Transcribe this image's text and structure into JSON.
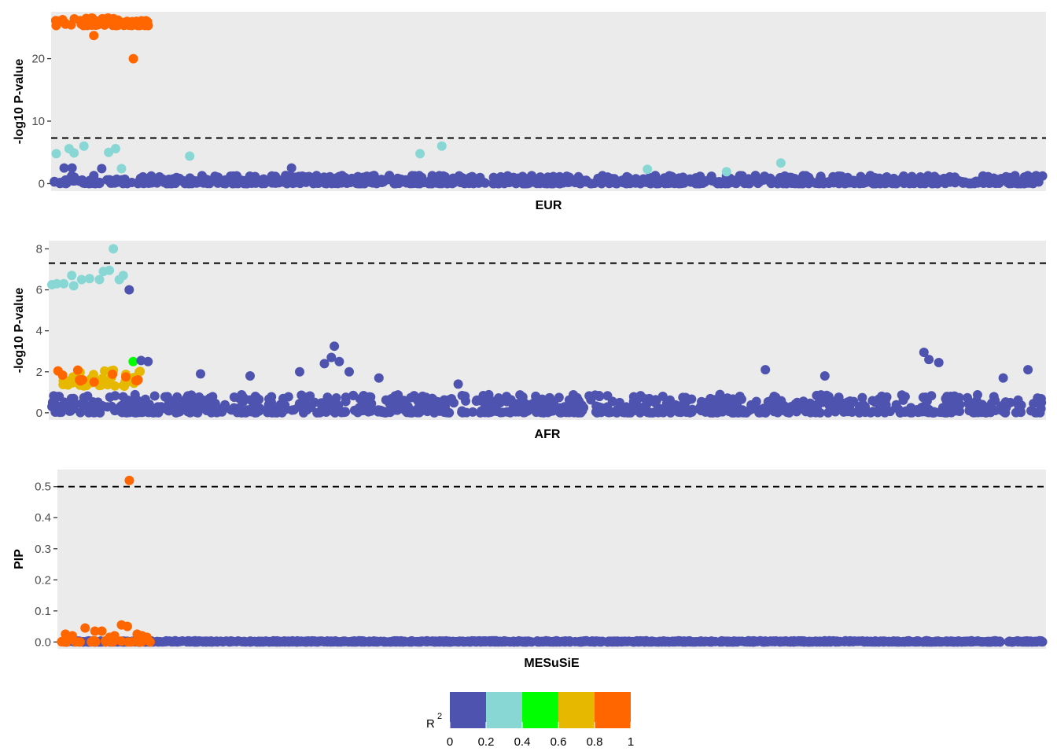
{
  "chart_data": [
    {
      "type": "scatter",
      "panel": "EUR",
      "xlabel": "EUR",
      "ylabel": "-log10 P-value",
      "ylim": [
        -1.2,
        27.5
      ],
      "yticks": [
        0,
        10,
        20
      ],
      "threshold": 7.3,
      "xlim": [
        0,
        1000
      ],
      "grid": false,
      "clusters": [
        {
          "x": [
            0,
            95
          ],
          "y": [
            25.3,
            26.6
          ],
          "n": 70,
          "r2": 0.9
        },
        {
          "x": [
            0,
            1000
          ],
          "y": [
            0,
            1.3
          ],
          "n": 900,
          "r2": 0.1
        }
      ],
      "points": [
        {
          "x": 40,
          "y": 23.7,
          "r2": 0.9
        },
        {
          "x": 80,
          "y": 20.0,
          "r2": 0.9
        },
        {
          "x": 2,
          "y": 4.8,
          "r2": 0.3
        },
        {
          "x": 15,
          "y": 5.6,
          "r2": 0.3
        },
        {
          "x": 20,
          "y": 4.9,
          "r2": 0.3
        },
        {
          "x": 30,
          "y": 6.0,
          "r2": 0.3
        },
        {
          "x": 55,
          "y": 5.0,
          "r2": 0.3
        },
        {
          "x": 62,
          "y": 5.6,
          "r2": 0.3
        },
        {
          "x": 68,
          "y": 2.4,
          "r2": 0.3
        },
        {
          "x": 137,
          "y": 4.4,
          "r2": 0.3
        },
        {
          "x": 370,
          "y": 4.8,
          "r2": 0.3
        },
        {
          "x": 392,
          "y": 6.0,
          "r2": 0.3
        },
        {
          "x": 600,
          "y": 2.3,
          "r2": 0.3
        },
        {
          "x": 680,
          "y": 1.9,
          "r2": 0.3
        },
        {
          "x": 735,
          "y": 3.3,
          "r2": 0.3
        },
        {
          "x": 10,
          "y": 2.5,
          "r2": 0.1
        },
        {
          "x": 18,
          "y": 2.5,
          "r2": 0.1
        },
        {
          "x": 48,
          "y": 2.4,
          "r2": 0.1
        },
        {
          "x": 240,
          "y": 2.5,
          "r2": 0.1
        }
      ]
    },
    {
      "type": "scatter",
      "panel": "AFR",
      "xlabel": "AFR",
      "ylabel": "-log10 P-value",
      "ylim": [
        -0.35,
        8.4
      ],
      "yticks": [
        0,
        2,
        4,
        6,
        8
      ],
      "threshold": 7.3,
      "xlim": [
        0,
        1000
      ],
      "grid": false,
      "clusters": [
        {
          "x": [
            0,
            1000
          ],
          "y": [
            0,
            0.9
          ],
          "n": 900,
          "r2": 0.1
        },
        {
          "x": [
            0,
            90
          ],
          "y": [
            1.3,
            2.1
          ],
          "n": 40,
          "r2": 0.7
        },
        {
          "x": [
            0,
            90
          ],
          "y": [
            1.5,
            2.1
          ],
          "n": 12,
          "r2": 0.9
        }
      ],
      "points": [
        {
          "x": 0,
          "y": 6.25,
          "r2": 0.3
        },
        {
          "x": 5,
          "y": 6.3,
          "r2": 0.3
        },
        {
          "x": 12,
          "y": 6.3,
          "r2": 0.3
        },
        {
          "x": 20,
          "y": 6.7,
          "r2": 0.3
        },
        {
          "x": 22,
          "y": 6.2,
          "r2": 0.3
        },
        {
          "x": 30,
          "y": 6.5,
          "r2": 0.3
        },
        {
          "x": 38,
          "y": 6.55,
          "r2": 0.3
        },
        {
          "x": 48,
          "y": 6.5,
          "r2": 0.3
        },
        {
          "x": 52,
          "y": 6.9,
          "r2": 0.3
        },
        {
          "x": 58,
          "y": 6.95,
          "r2": 0.3
        },
        {
          "x": 62,
          "y": 8.0,
          "r2": 0.3
        },
        {
          "x": 68,
          "y": 6.5,
          "r2": 0.3
        },
        {
          "x": 72,
          "y": 6.7,
          "r2": 0.3
        },
        {
          "x": 78,
          "y": 6.0,
          "r2": 0.1
        },
        {
          "x": 82,
          "y": 2.5,
          "r2": 0.5
        },
        {
          "x": 90,
          "y": 2.55,
          "r2": 0.1
        },
        {
          "x": 97,
          "y": 2.5,
          "r2": 0.1
        },
        {
          "x": 282,
          "y": 2.7,
          "r2": 0.1
        },
        {
          "x": 275,
          "y": 2.4,
          "r2": 0.1
        },
        {
          "x": 285,
          "y": 3.25,
          "r2": 0.1
        },
        {
          "x": 290,
          "y": 2.5,
          "r2": 0.1
        },
        {
          "x": 250,
          "y": 2.0,
          "r2": 0.1
        },
        {
          "x": 300,
          "y": 2.0,
          "r2": 0.1
        },
        {
          "x": 880,
          "y": 2.95,
          "r2": 0.1
        },
        {
          "x": 885,
          "y": 2.6,
          "r2": 0.1
        },
        {
          "x": 895,
          "y": 2.45,
          "r2": 0.1
        },
        {
          "x": 985,
          "y": 2.1,
          "r2": 0.1
        },
        {
          "x": 150,
          "y": 1.9,
          "r2": 0.1
        },
        {
          "x": 200,
          "y": 1.8,
          "r2": 0.1
        },
        {
          "x": 330,
          "y": 1.7,
          "r2": 0.1
        },
        {
          "x": 410,
          "y": 1.4,
          "r2": 0.1
        },
        {
          "x": 720,
          "y": 2.1,
          "r2": 0.1
        },
        {
          "x": 780,
          "y": 1.8,
          "r2": 0.1
        },
        {
          "x": 960,
          "y": 1.7,
          "r2": 0.1
        }
      ]
    },
    {
      "type": "scatter",
      "panel": "MESuSiE",
      "xlabel": "MESuSiE",
      "ylabel": "PIP",
      "ylim": [
        -0.022,
        0.555
      ],
      "yticks": [
        0,
        0.1,
        0.2,
        0.3,
        0.4,
        0.5
      ],
      "ytick_labels": [
        "0.0",
        "0.1",
        "0.2",
        "0.3",
        "0.4",
        "0.5"
      ],
      "threshold": 0.5,
      "xlim": [
        0,
        1000
      ],
      "grid": false,
      "clusters": [
        {
          "x": [
            0,
            1000
          ],
          "y": [
            0,
            0.004
          ],
          "n": 1000,
          "r2": 0.1
        },
        {
          "x": [
            0,
            95
          ],
          "y": [
            0,
            0.004
          ],
          "n": 25,
          "r2": 0.9
        }
      ],
      "points": [
        {
          "x": 70,
          "y": 0.52,
          "r2": 0.9
        },
        {
          "x": 5,
          "y": 0.025,
          "r2": 0.9
        },
        {
          "x": 12,
          "y": 0.02,
          "r2": 0.9
        },
        {
          "x": 25,
          "y": 0.045,
          "r2": 0.9
        },
        {
          "x": 35,
          "y": 0.035,
          "r2": 0.9
        },
        {
          "x": 42,
          "y": 0.035,
          "r2": 0.9
        },
        {
          "x": 50,
          "y": 0.015,
          "r2": 0.9
        },
        {
          "x": 55,
          "y": 0.02,
          "r2": 0.9
        },
        {
          "x": 62,
          "y": 0.055,
          "r2": 0.9
        },
        {
          "x": 68,
          "y": 0.05,
          "r2": 0.9
        },
        {
          "x": 78,
          "y": 0.025,
          "r2": 0.9
        },
        {
          "x": 83,
          "y": 0.02,
          "r2": 0.9
        },
        {
          "x": 88,
          "y": 0.015,
          "r2": 0.9
        }
      ]
    }
  ],
  "legend": {
    "title": "R",
    "title_superscript": "2",
    "ticks": [
      "0",
      "0.2",
      "0.4",
      "0.6",
      "0.8",
      "1"
    ],
    "colors": [
      "#4f53b0",
      "#88d7d4",
      "#00ff00",
      "#e6b800",
      "#ff6600"
    ]
  },
  "colors": {
    "panel_bg": "#ebebeb",
    "threshold_line": "#000000"
  }
}
